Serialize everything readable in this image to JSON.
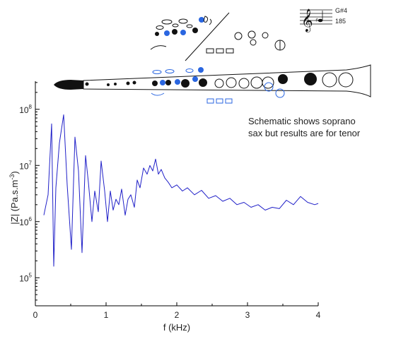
{
  "chart_data": {
    "type": "line",
    "xlabel": "f (kHz)",
    "ylabel_main": "|Z| (Pa.s.m",
    "ylabel_sup": "-3",
    "ylabel_close": ")",
    "xlim": [
      0,
      4
    ],
    "ylim_log10": [
      4.5,
      8.5
    ],
    "y_log_scale": true,
    "x_ticks": [
      "0",
      "1",
      "2",
      "3",
      "4"
    ],
    "y_ticks": [
      {
        "base": "10",
        "exp": "5",
        "value": 100000
      },
      {
        "base": "10",
        "exp": "6",
        "value": 1000000
      },
      {
        "base": "10",
        "exp": "7",
        "value": 10000000
      },
      {
        "base": "10",
        "exp": "8",
        "value": 100000000
      }
    ],
    "grid": false,
    "series": [
      {
        "color": "#2020c8",
        "x": [
          0.12,
          0.18,
          0.23,
          0.26,
          0.29,
          0.34,
          0.4,
          0.45,
          0.51,
          0.56,
          0.61,
          0.66,
          0.71,
          0.75,
          0.8,
          0.84,
          0.89,
          0.93,
          0.98,
          1.02,
          1.06,
          1.1,
          1.14,
          1.18,
          1.22,
          1.27,
          1.31,
          1.35,
          1.4,
          1.44,
          1.48,
          1.53,
          1.58,
          1.62,
          1.66,
          1.7,
          1.74,
          1.78,
          1.83,
          1.88,
          1.93,
          2.0,
          2.08,
          2.15,
          2.25,
          2.35,
          2.45,
          2.55,
          2.65,
          2.75,
          2.85,
          2.95,
          3.05,
          3.15,
          3.25,
          3.35,
          3.45,
          3.55,
          3.65,
          3.75,
          3.85,
          3.95,
          4.0
        ],
        "y": [
          1300000.0,
          3000000.0,
          55000000.0,
          160000.0,
          4000000.0,
          25000000.0,
          80000000.0,
          4500000.0,
          320000.0,
          32000000.0,
          8000000.0,
          280000.0,
          15000000.0,
          5000000.0,
          1000000.0,
          3500000.0,
          1500000.0,
          12000000.0,
          3500000.0,
          1000000.0,
          3500000.0,
          1600000.0,
          2500000.0,
          2000000.0,
          3800000.0,
          1300000.0,
          2500000.0,
          3000000.0,
          1800000.0,
          5500000.0,
          4000000.0,
          9000000.0,
          7000000.0,
          10000000.0,
          8000000.0,
          13000000.0,
          7000000.0,
          8500000.0,
          6000000.0,
          5000000.0,
          4000000.0,
          4500000.0,
          3500000.0,
          4000000.0,
          3000000.0,
          3600000.0,
          2600000.0,
          2900000.0,
          2300000.0,
          2600000.0,
          2000000.0,
          2200000.0,
          1800000.0,
          2000000.0,
          1600000.0,
          1800000.0,
          1700000.0,
          2400000.0,
          2000000.0,
          2800000.0,
          2200000.0,
          2000000.0,
          2100000.0
        ]
      }
    ]
  },
  "annotation": {
    "line1": "Schematic shows soprano",
    "line2": "sax but results are for tenor"
  },
  "fingering": {
    "note_name": "G#4",
    "frequency": "185"
  },
  "colors": {
    "curve": "#2020c8",
    "fingering_blue": "#2a66e0",
    "axis": "#000000"
  }
}
